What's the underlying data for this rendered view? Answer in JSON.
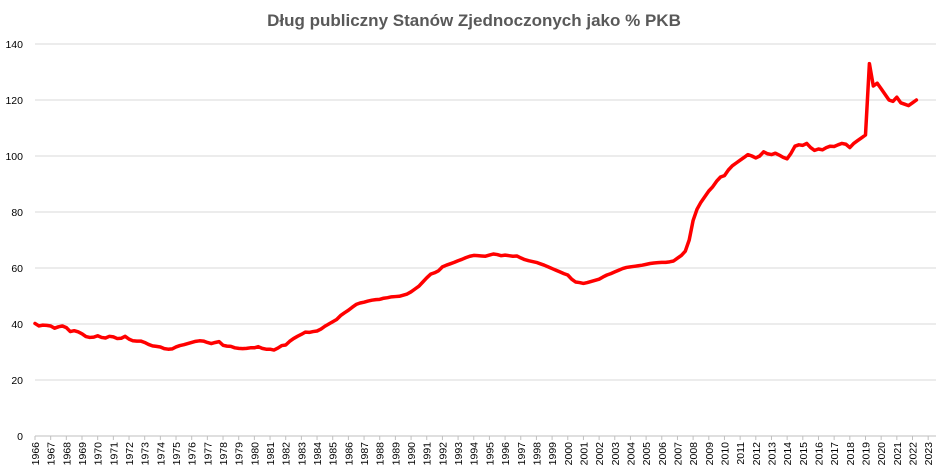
{
  "chart_data": {
    "type": "line",
    "title": "Dług publiczny Stanów Zjednoczonych jako % PKB",
    "xlabel": "",
    "ylabel": "",
    "ylim": [
      0,
      140
    ],
    "yticks": [
      0,
      20,
      40,
      60,
      80,
      100,
      120,
      140
    ],
    "grid": true,
    "legend": "none",
    "series_color": "#ff0000",
    "grid_color": "#d9d9d9",
    "x_start": "1966Q1",
    "x_tick_labels": [
      "1966",
      "1967",
      "1968",
      "1969",
      "1970",
      "1971",
      "1972",
      "1973",
      "1974",
      "1975",
      "1976",
      "1977",
      "1978",
      "1979",
      "1980",
      "1981",
      "1982",
      "1983",
      "1984",
      "1985",
      "1986",
      "1987",
      "1988",
      "1989",
      "1990",
      "1991",
      "1992",
      "1993",
      "1994",
      "1995",
      "1996",
      "1997",
      "1998",
      "1999",
      "2000",
      "2001",
      "2002",
      "2003",
      "2004",
      "2005",
      "2006",
      "2007",
      "2008",
      "2009",
      "2010",
      "2011",
      "2012",
      "2013",
      "2014",
      "2015",
      "2016",
      "2017",
      "2018",
      "2019",
      "2020",
      "2021",
      "2022",
      "2023"
    ],
    "series": [
      {
        "frequency": "quarterly",
        "values": [
          40.2,
          39.3,
          39.6,
          39.5,
          39.3,
          38.5,
          39.0,
          39.3,
          38.7,
          37.3,
          37.6,
          37.2,
          36.5,
          35.5,
          35.2,
          35.3,
          35.8,
          35.2,
          35.0,
          35.6,
          35.4,
          34.8,
          34.9,
          35.6,
          34.6,
          34.0,
          33.9,
          33.9,
          33.4,
          32.7,
          32.2,
          32.0,
          31.8,
          31.2,
          31.0,
          31.1,
          31.8,
          32.3,
          32.6,
          33.0,
          33.4,
          33.8,
          34.0,
          33.9,
          33.4,
          33.0,
          33.4,
          33.7,
          32.4,
          32.1,
          32.0,
          31.5,
          31.3,
          31.2,
          31.3,
          31.5,
          31.5,
          31.9,
          31.3,
          31.0,
          31.0,
          30.7,
          31.4,
          32.3,
          32.5,
          33.8,
          34.8,
          35.6,
          36.3,
          37.1,
          37.0,
          37.3,
          37.5,
          38.2,
          39.2,
          40.0,
          40.8,
          41.6,
          43.0,
          44.0,
          44.9,
          46.0,
          47.0,
          47.5,
          47.8,
          48.2,
          48.5,
          48.7,
          48.8,
          49.2,
          49.4,
          49.7,
          49.8,
          49.9,
          50.3,
          50.7,
          51.5,
          52.5,
          53.5,
          55.0,
          56.5,
          57.8,
          58.3,
          59.0,
          60.4,
          61.0,
          61.5,
          62.0,
          62.6,
          63.1,
          63.7,
          64.2,
          64.5,
          64.4,
          64.3,
          64.2,
          64.6,
          65.0,
          64.8,
          64.4,
          64.6,
          64.4,
          64.2,
          64.3,
          63.6,
          63.0,
          62.6,
          62.3,
          62.0,
          61.5,
          61.0,
          60.4,
          59.8,
          59.2,
          58.6,
          58.0,
          57.5,
          56.0,
          55.0,
          54.8,
          54.5,
          54.8,
          55.2,
          55.6,
          56.0,
          56.8,
          57.5,
          58.0,
          58.6,
          59.2,
          59.8,
          60.2,
          60.4,
          60.6,
          60.8,
          61.0,
          61.3,
          61.6,
          61.8,
          61.9,
          62.0,
          62.0,
          62.2,
          62.5,
          63.5,
          64.5,
          66.0,
          70.0,
          77.0,
          81.0,
          83.5,
          85.5,
          87.5,
          89.0,
          91.0,
          92.5,
          93.0,
          95.0,
          96.5,
          97.5,
          98.5,
          99.5,
          100.5,
          100.0,
          99.3,
          100.0,
          101.5,
          100.8,
          100.5,
          101.0,
          100.3,
          99.5,
          99.0,
          101.0,
          103.5,
          104.0,
          103.8,
          104.5,
          103.0,
          102.0,
          102.5,
          102.2,
          103.0,
          103.5,
          103.4,
          104.0,
          104.5,
          104.2,
          103.0,
          104.5,
          105.5,
          106.5,
          107.5,
          133.0,
          125.0,
          126.0,
          124.0,
          122.0,
          120.0,
          119.5,
          121.0,
          119.0,
          118.5,
          118.0,
          119.0,
          120.0
        ]
      }
    ]
  }
}
